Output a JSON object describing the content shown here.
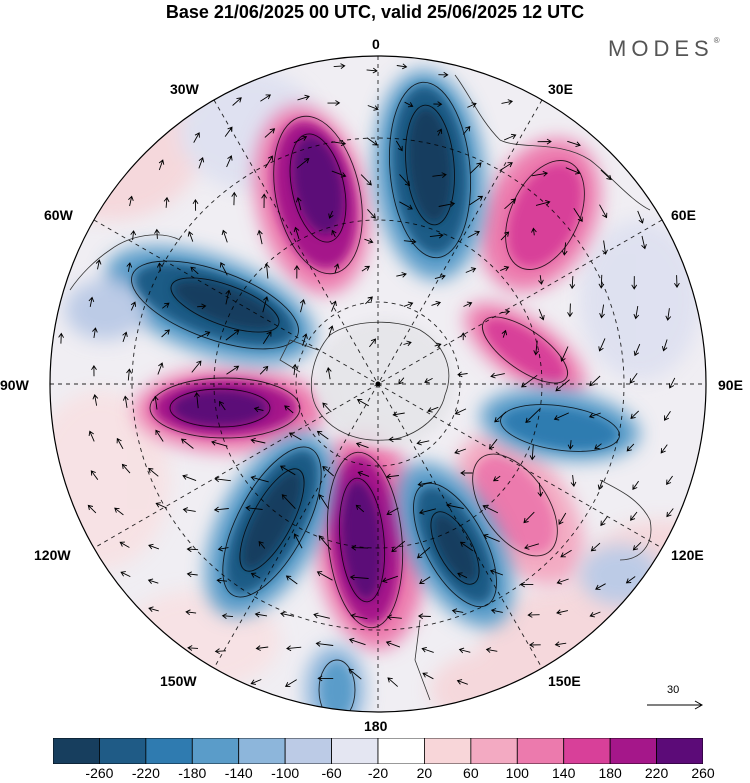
{
  "title": "Base 21/06/2025 00 UTC, valid 25/06/2025 12 UTC",
  "brand": "MODES",
  "brand_mark": "®",
  "lon_labels": {
    "l0": "0",
    "l30e": "30E",
    "l60e": "60E",
    "l90e": "90E",
    "l120e": "120E",
    "l150e": "150E",
    "l180": "180",
    "l150w": "150W",
    "l120w": "120W",
    "l90w": "90W",
    "l60w": "60W",
    "l30w": "30W"
  },
  "vector_reference": "30",
  "colorbar": {
    "ticks": [
      "-260",
      "-220",
      "-180",
      "-140",
      "-100",
      "-60",
      "-20",
      "20",
      "60",
      "100",
      "140",
      "180",
      "220",
      "260"
    ],
    "colors": [
      "#173e5e",
      "#1f5b86",
      "#2f7bb0",
      "#5a9cc9",
      "#8db6db",
      "#bccbe6",
      "#e4e6f2",
      "#ffffff",
      "#f8d6d9",
      "#f3aac2",
      "#ec7aad",
      "#d84099",
      "#a5178a",
      "#5c0b78"
    ]
  }
}
